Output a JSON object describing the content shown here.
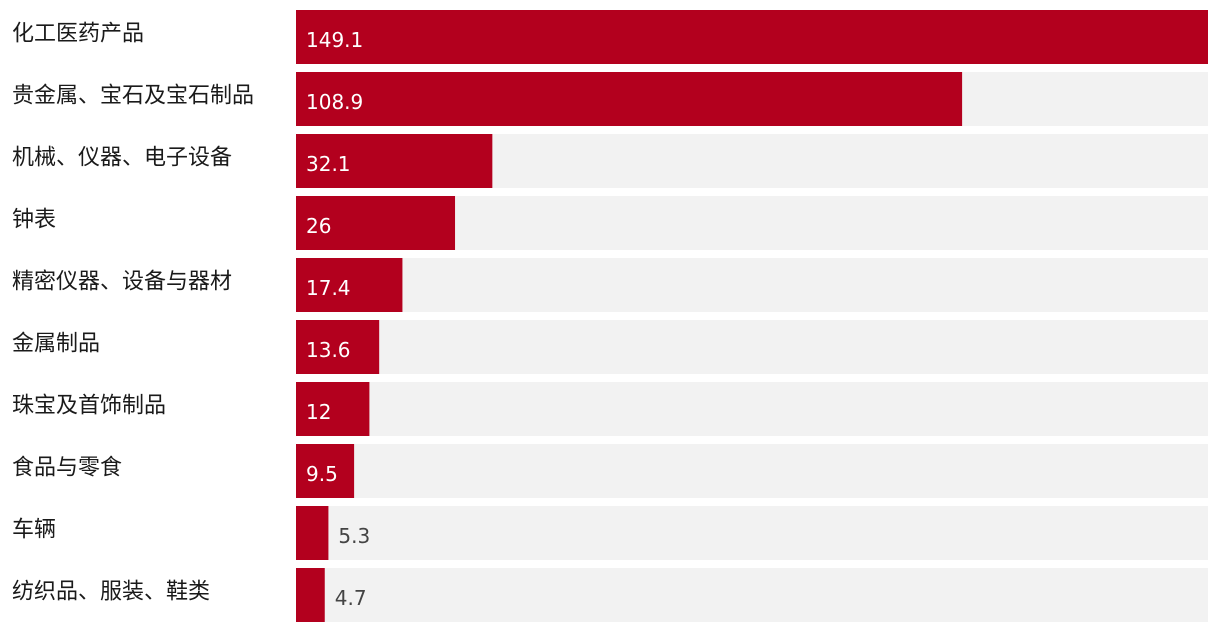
{
  "chart_data": {
    "type": "bar",
    "orientation": "horizontal",
    "title": "",
    "xlabel": "",
    "ylabel": "",
    "xlim": [
      0,
      149.1
    ],
    "grid": false,
    "legend": "none",
    "categories": [
      "化工医药产品",
      "贵金属、宝石及宝石制品",
      "机械、仪器、电子设备",
      "钟表",
      "精密仪器、设备与器材",
      "金属制品",
      "珠宝及首饰制品",
      "食品与零食",
      "车辆",
      "纺织品、服装、鞋类"
    ],
    "values": [
      149.1,
      108.9,
      32.1,
      26,
      17.4,
      13.6,
      12,
      9.5,
      5.3,
      4.7
    ],
    "value_labels": [
      "149.1",
      "108.9",
      "32.1",
      "26",
      "17.4",
      "13.6",
      "12",
      "9.5",
      "5.3",
      "4.7"
    ],
    "colors": {
      "bar": "#b3001e",
      "track": "#f2f2f2",
      "label_inside": "#ffffff",
      "label_outside": "#444444",
      "category_text": "#1a1a1a"
    }
  }
}
